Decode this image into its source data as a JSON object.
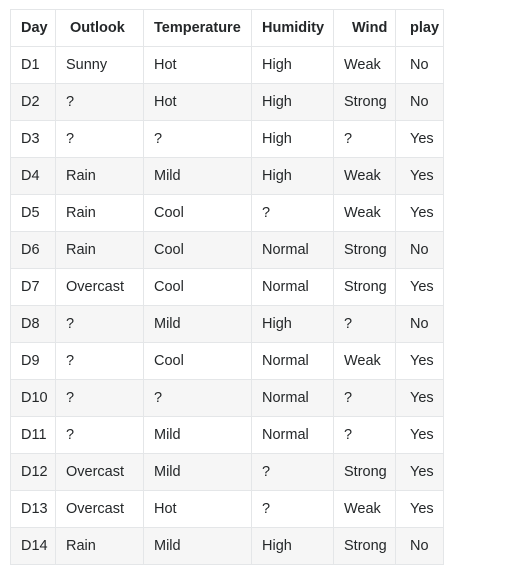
{
  "table": {
    "headers": [
      "Day",
      "Outlook",
      "Temperature",
      "Humidity",
      "Wind",
      "play"
    ],
    "rows": [
      [
        "D1",
        "Sunny",
        "Hot",
        "High",
        "Weak",
        "No"
      ],
      [
        "D2",
        "?",
        "Hot",
        "High",
        "Strong",
        "No"
      ],
      [
        "D3",
        "?",
        "?",
        "High",
        "?",
        "Yes"
      ],
      [
        "D4",
        "Rain",
        "Mild",
        "High",
        "Weak",
        "Yes"
      ],
      [
        "D5",
        "Rain",
        "Cool",
        "?",
        "Weak",
        "Yes"
      ],
      [
        "D6",
        "Rain",
        "Cool",
        "Normal",
        "Strong",
        "No"
      ],
      [
        "D7",
        "Overcast",
        "Cool",
        "Normal",
        "Strong",
        "Yes"
      ],
      [
        "D8",
        "?",
        "Mild",
        "High",
        "?",
        "No"
      ],
      [
        "D9",
        "?",
        "Cool",
        "Normal",
        "Weak",
        "Yes"
      ],
      [
        "D10",
        "?",
        "?",
        "Normal",
        "?",
        "Yes"
      ],
      [
        "D11",
        "?",
        "Mild",
        "Normal",
        "?",
        "Yes"
      ],
      [
        "D12",
        "Overcast",
        "Mild",
        "?",
        "Strong",
        "Yes"
      ],
      [
        "D13",
        "Overcast",
        "Hot",
        "?",
        "Weak",
        "Yes"
      ],
      [
        "D14",
        "Rain",
        "Mild",
        "High",
        "Strong",
        "No"
      ]
    ]
  },
  "colors": {
    "border": "#e4e6e8",
    "row_alt": "#f6f6f6",
    "text": "#242729"
  }
}
